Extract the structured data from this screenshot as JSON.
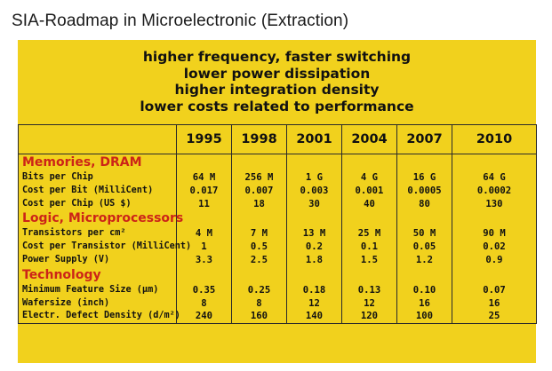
{
  "title": "SIA-Roadmap in Microelectronic (Extraction)",
  "goals": [
    "higher frequency, faster switching",
    "lower power dissipation",
    "higher integration density",
    "lower costs related to performance"
  ],
  "years": [
    "1995",
    "1998",
    "2001",
    "2004",
    "2007",
    "2010"
  ],
  "sections": [
    {
      "title": "Memories, DRAM",
      "rows": [
        {
          "label": "Bits per Chip",
          "values": [
            "64 M",
            "256 M",
            "1 G",
            "4 G",
            "16 G",
            "64 G"
          ]
        },
        {
          "label": "Cost per Bit (MilliCent)",
          "values": [
            "0.017",
            "0.007",
            "0.003",
            "0.001",
            "0.0005",
            "0.0002"
          ]
        },
        {
          "label": "Cost per Chip (US $)",
          "values": [
            "11",
            "18",
            "30",
            "40",
            "80",
            "130"
          ]
        }
      ]
    },
    {
      "title": "Logic, Microprocessors",
      "rows": [
        {
          "label": "Transistors per cm²",
          "values": [
            "4 M",
            "7 M",
            "13 M",
            "25 M",
            "50 M",
            "90 M"
          ]
        },
        {
          "label": "Cost per Transistor (MilliCent)",
          "values": [
            "1",
            "0.5",
            "0.2",
            "0.1",
            "0.05",
            "0.02"
          ]
        },
        {
          "label": "Power Supply (V)",
          "values": [
            "3.3",
            "2.5",
            "1.8",
            "1.5",
            "1.2",
            "0.9"
          ]
        }
      ]
    },
    {
      "title": "Technology",
      "rows": [
        {
          "label": "Minimum Feature Size (µm)",
          "values": [
            "0.35",
            "0.25",
            "0.18",
            "0.13",
            "0.10",
            "0.07"
          ]
        },
        {
          "label": "Wafersize (inch)",
          "values": [
            "8",
            "8",
            "12",
            "12",
            "16",
            "16"
          ]
        },
        {
          "label": "Electr. Defect Density (d/m²)",
          "values": [
            "240",
            "160",
            "140",
            "120",
            "100",
            "25"
          ]
        }
      ]
    }
  ],
  "colors": {
    "panel": "#f1d11d",
    "section_heading": "#cc2418"
  }
}
